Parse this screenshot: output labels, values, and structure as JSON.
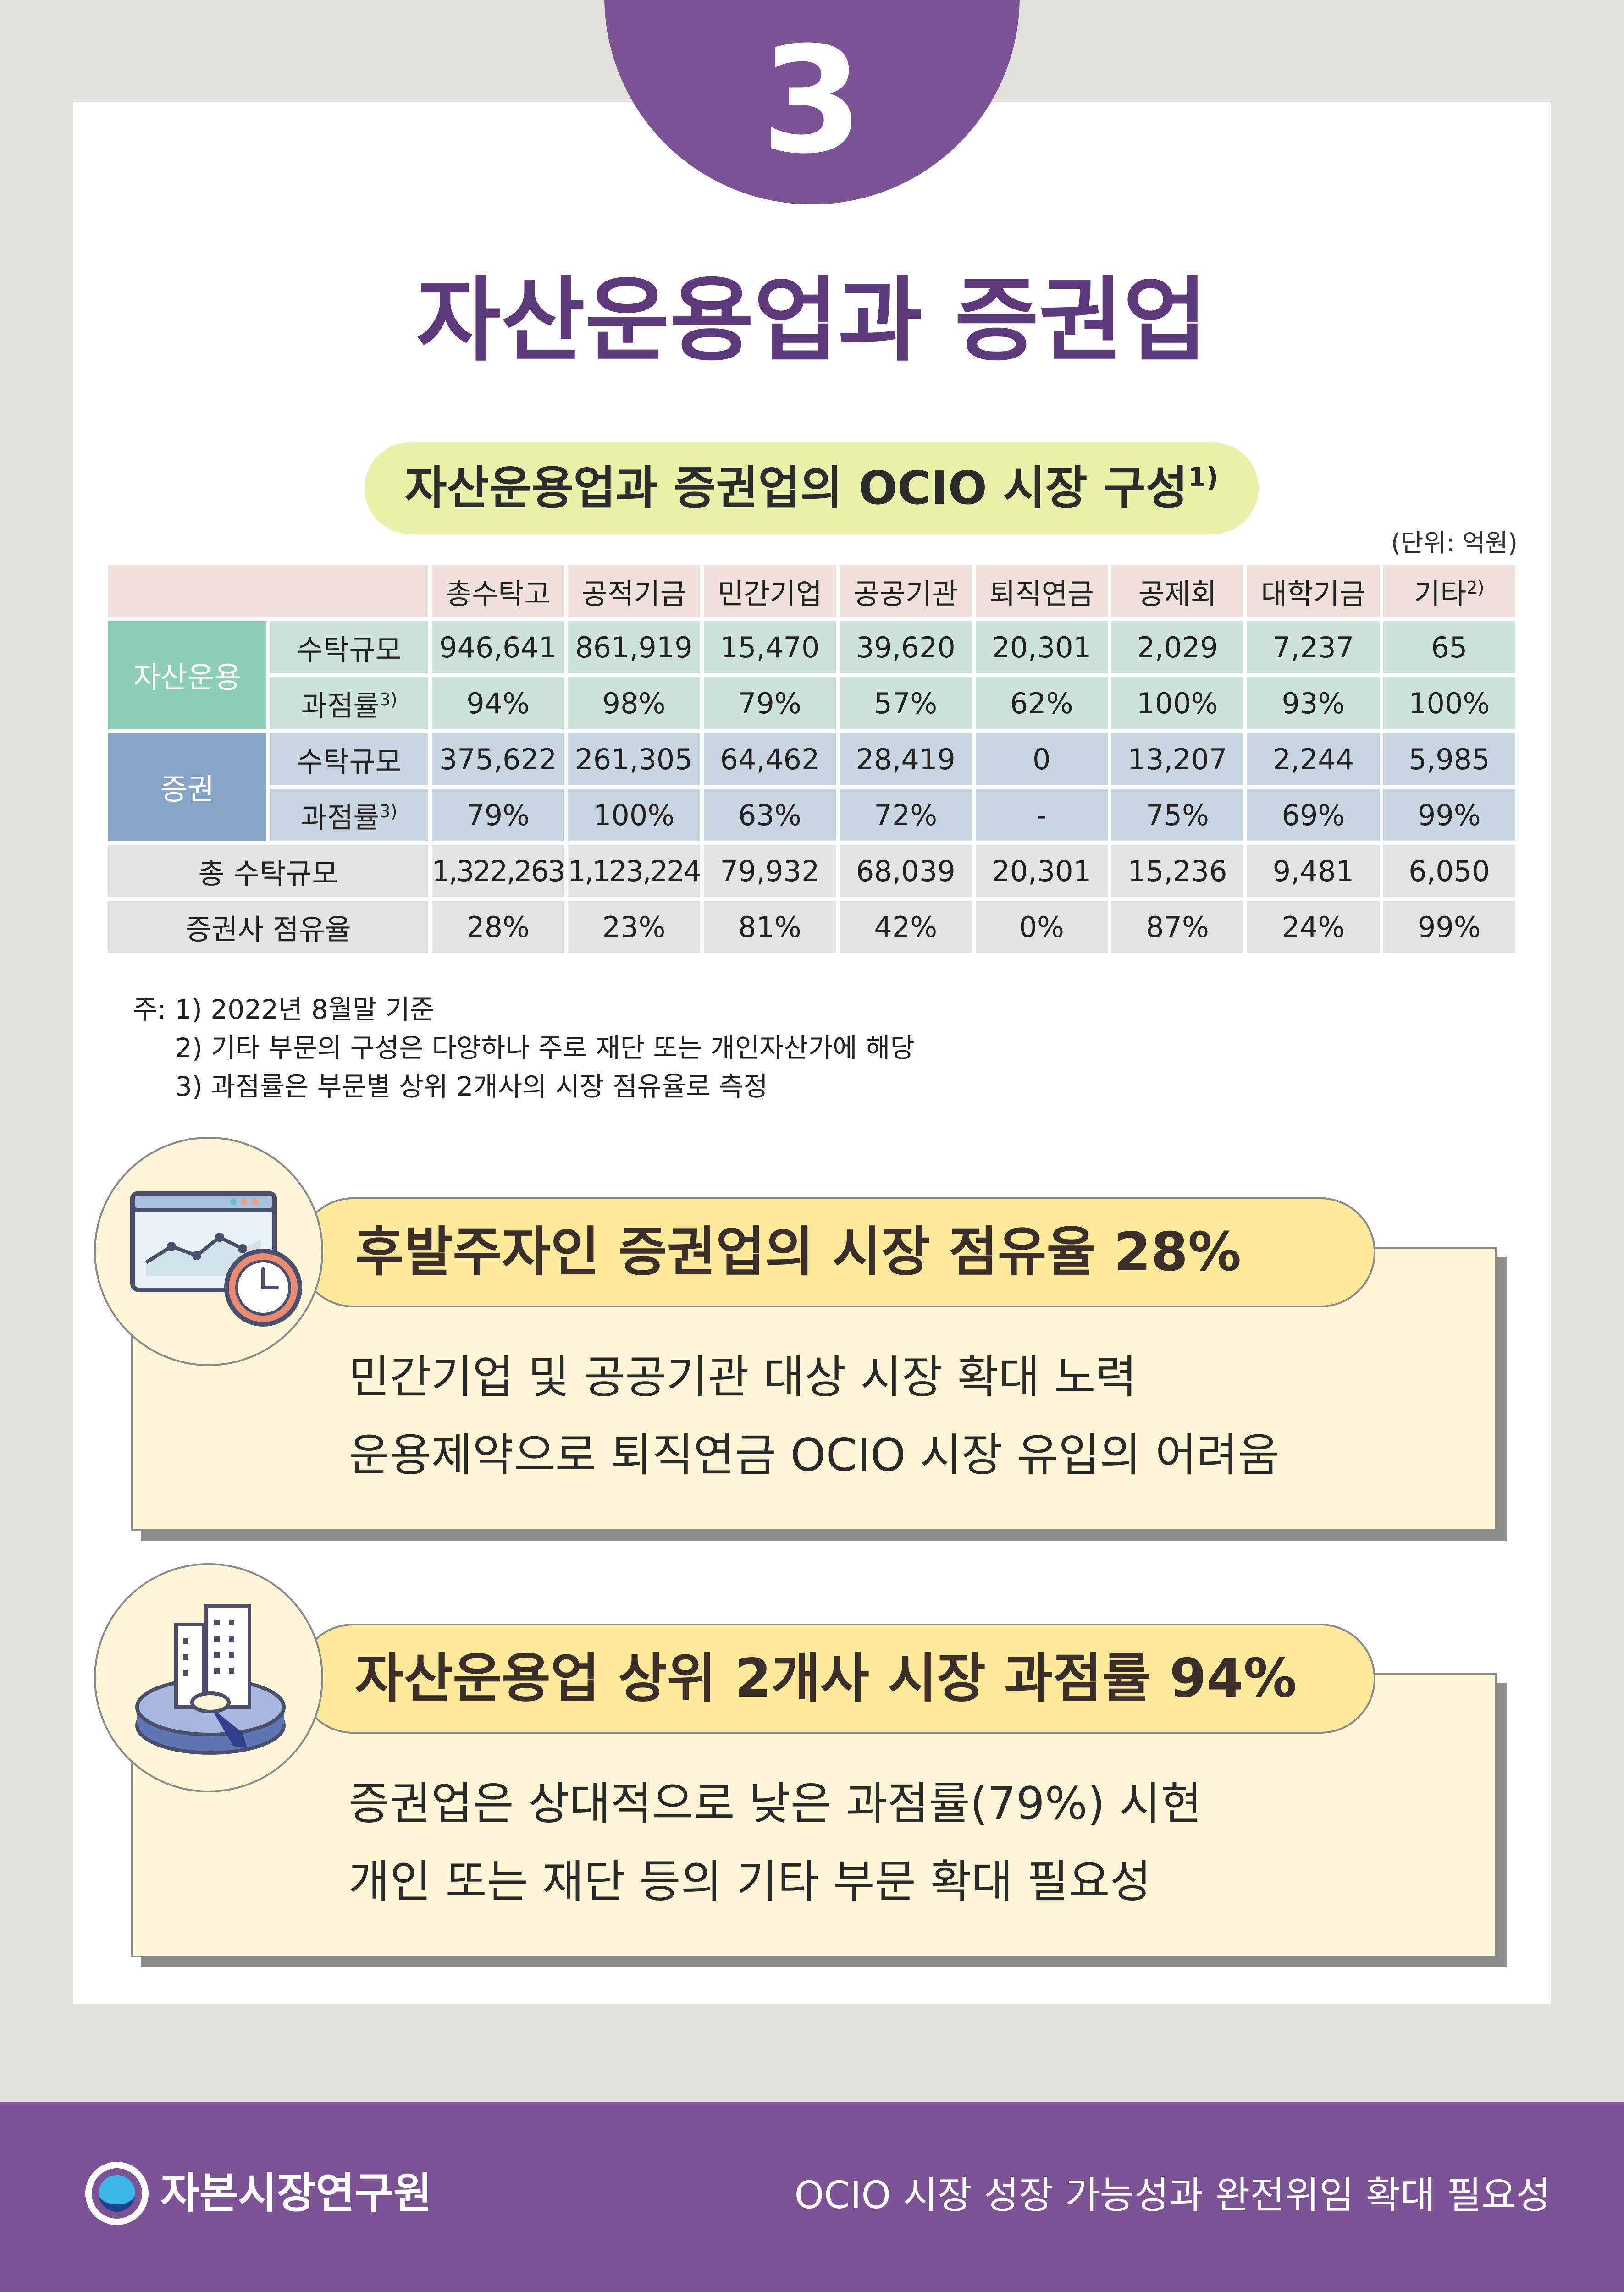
{
  "section_number": "3",
  "title": "자산운용업과 증권업",
  "table_title": "자산운용업과 증권업의 OCIO 시장 구성",
  "table_title_note": "1)",
  "unit": "(단위: 억원)",
  "columns": [
    "총수탁고",
    "공적기금",
    "민간기업",
    "공공기관",
    "퇴직연금",
    "공제회",
    "대학기금",
    "기타"
  ],
  "column_last_note": "2)",
  "groups": {
    "asset_mgmt": {
      "label": "자산운용",
      "row1_label": "수탁규모",
      "row1": [
        "946,641",
        "861,919",
        "15,470",
        "39,620",
        "20,301",
        "2,029",
        "7,237",
        "65"
      ],
      "row2_label": "과점률",
      "row2_note": "3)",
      "row2": [
        "94%",
        "98%",
        "79%",
        "57%",
        "62%",
        "100%",
        "93%",
        "100%"
      ]
    },
    "securities": {
      "label": "증권",
      "row1_label": "수탁규모",
      "row1": [
        "375,622",
        "261,305",
        "64,462",
        "28,419",
        "0",
        "13,207",
        "2,244",
        "5,985"
      ],
      "row2_label": "과점률",
      "row2_note": "3)",
      "row2": [
        "79%",
        "100%",
        "63%",
        "72%",
        "-",
        "75%",
        "69%",
        "99%"
      ]
    }
  },
  "total_row": {
    "label": "총 수탁규모",
    "values": [
      "1,322,263",
      "1,123,224",
      "79,932",
      "68,039",
      "20,301",
      "15,236",
      "9,481",
      "6,050"
    ]
  },
  "share_row": {
    "label": "증권사 점유율",
    "values": [
      "28%",
      "23%",
      "81%",
      "42%",
      "0%",
      "87%",
      "24%",
      "99%"
    ]
  },
  "notes": [
    "주: 1) 2022년 8월말 기준",
    "2) 기타 부문의 구성은 다양하나 주로 재단 또는 개인자산가에 해당",
    "3) 과점률은 부문별 상위 2개사의 시장 점유율로 측정"
  ],
  "box1": {
    "heading": "후발주자인 증권업의 시장 점유율 28%",
    "line1": "민간기업 및 공공기관 대상 시장 확대 노력",
    "line2": "운용제약으로 퇴직연금 OCIO 시장 유입의 어려움",
    "icon": "line-chart-clock-icon"
  },
  "box2": {
    "heading": "자산운용업 상위 2개사 시장 과점률 94%",
    "line1": "증권업은 상대적으로 낮은 과점률(79%) 시현",
    "line2": "개인 또는 재단 등의 기타 부문 확대 필요성",
    "icon": "buildings-pie-icon"
  },
  "footer": {
    "org_name": "자본시장연구원",
    "report_title": "OCIO 시장 성장 가능성과 완전위임 확대 필요성"
  },
  "colors": {
    "purple": "#7c5394",
    "title_purple": "#5e3a7c",
    "asset_mgmt": "#8ecfba",
    "securities": "#86a5c6",
    "highlight_yellow": "#fde99a"
  }
}
